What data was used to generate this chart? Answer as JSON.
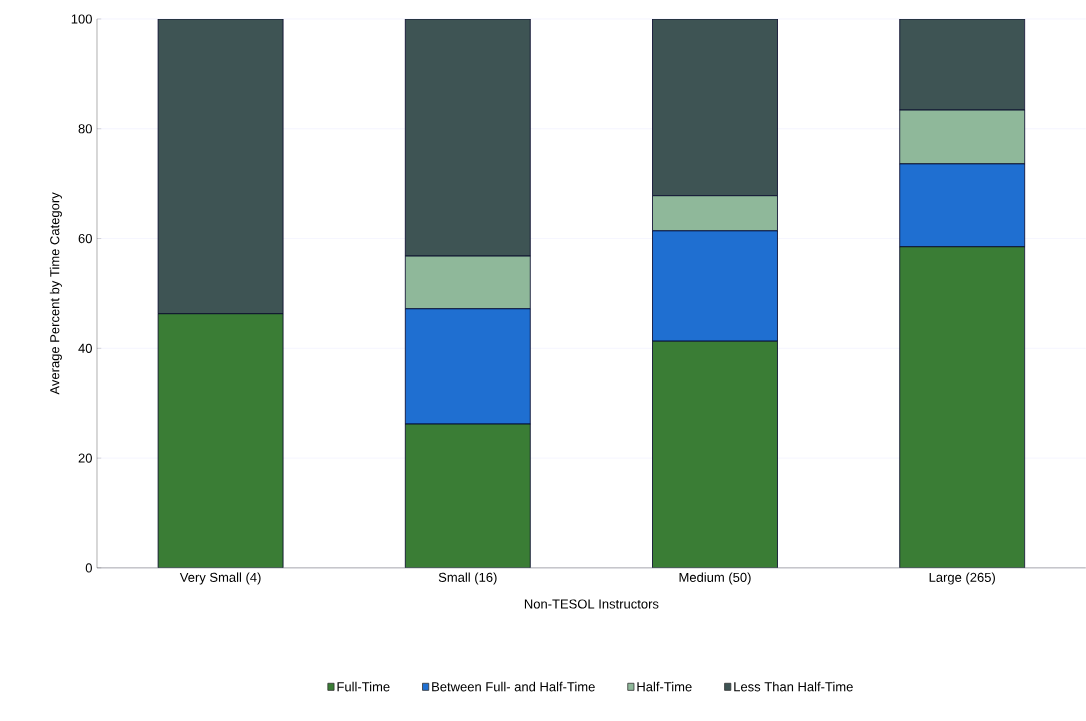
{
  "chart_data": {
    "type": "bar",
    "stacked": true,
    "xlabel": "Non-TESOL Instructors",
    "ylabel": "Average Percent by Time Category",
    "categories": [
      "Very Small (4)",
      "Small (16)",
      "Medium (50)",
      "Large (265)"
    ],
    "series": [
      {
        "name": "Full-Time",
        "color": "#3a7d35",
        "values": [
          46.3,
          26.2,
          41.3,
          58.5
        ]
      },
      {
        "name": "Between Full- and Half-Time",
        "color": "#1f6fd1",
        "values": [
          0,
          21.0,
          20.1,
          15.1
        ]
      },
      {
        "name": "Half-Time",
        "color": "#8fb89a",
        "values": [
          0,
          9.6,
          6.4,
          9.8
        ]
      },
      {
        "name": "Less Than Half-Time",
        "color": "#3e5454",
        "values": [
          53.7,
          43.2,
          32.2,
          16.6
        ]
      }
    ],
    "ylim": [
      0,
      100
    ],
    "yticks": [
      0,
      20,
      40,
      60,
      80,
      100
    ],
    "grid": "y",
    "legend": "bottom"
  }
}
